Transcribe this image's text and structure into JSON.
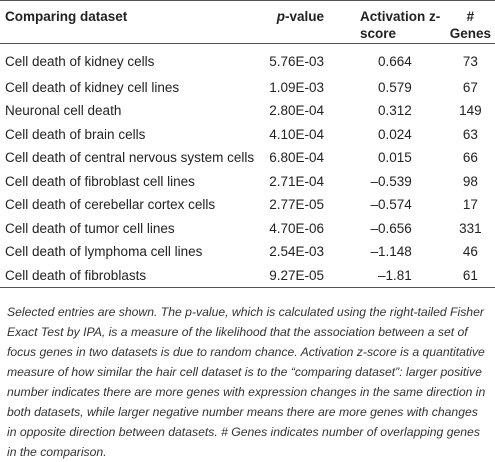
{
  "table": {
    "header": [
      "Comparing dataset",
      "p-value",
      "Activation z-score",
      "# Genes"
    ],
    "rows": [
      [
        "Cell death of kidney cells",
        "5.76E-03",
        "0.664",
        "73"
      ],
      [
        "Cell death of kidney cell lines",
        "1.09E-03",
        "0.579",
        "67"
      ],
      [
        "Neuronal cell death",
        "2.80E-04",
        "0.312",
        "149"
      ],
      [
        "Cell death of brain cells",
        "4.10E-04",
        "0.024",
        "63"
      ],
      [
        "Cell death of central nervous system cells",
        "6.80E-04",
        "0.015",
        "66"
      ],
      [
        "Cell death of fibroblast cell lines",
        "2.71E-04",
        "–0.539",
        "98"
      ],
      [
        "Cell death of cerebellar cortex cells",
        "2.77E-05",
        "–0.574",
        "17"
      ],
      [
        "Cell death of tumor cell lines",
        "4.70E-06",
        "–0.656",
        "331"
      ],
      [
        "Cell death of lymphoma cell lines",
        "2.54E-03",
        "–1.148",
        "46"
      ],
      [
        "Cell death of fibroblasts",
        "9.27E-05",
        "–1.81",
        "61"
      ]
    ],
    "footnote": "Selected entries are shown. The p-value, which is calculated using the right-tailed Fisher Exact Test by IPA, is a measure of the likelihood that the association between a set of focus genes in two datasets is due to random chance. Activation z-score is a quantitative measure of how similar the hair cell dataset is to the “comparing dataset”: larger positive number indicates there are more genes with expression changes in the same direction in both datasets, while larger negative number means there are more genes with changes in opposite direction between datasets. # Genes indicates number of overlapping genes in the comparison."
  }
}
